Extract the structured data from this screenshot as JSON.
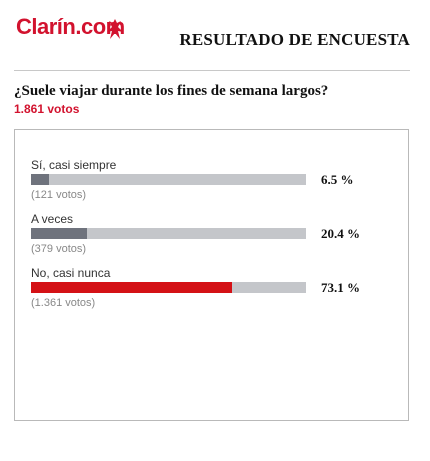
{
  "brand": {
    "logo_text": "Clarín.com",
    "logo_color": "#d2122e"
  },
  "header": {
    "title": "RESULTADO DE ENCUESTA"
  },
  "poll": {
    "question": "¿Suele viajar durante los fines de semana largos?",
    "total_votes": "1.861 votos",
    "options": [
      {
        "label": "Sí, casi siempre",
        "count": "(121 votos)",
        "percent": "6.5 %",
        "share": 0.065
      },
      {
        "label": "A veces",
        "count": "(379 votos)",
        "percent": "20.4 %",
        "share": 0.204
      },
      {
        "label": "No, casi nunca",
        "count": "(1.361 votos)",
        "percent": "73.1 %",
        "share": 0.731
      }
    ]
  },
  "colors": {
    "bar_track": "#c4c6ca",
    "bar_fill": "#6f737d",
    "bar_leader": "#d41116"
  }
}
